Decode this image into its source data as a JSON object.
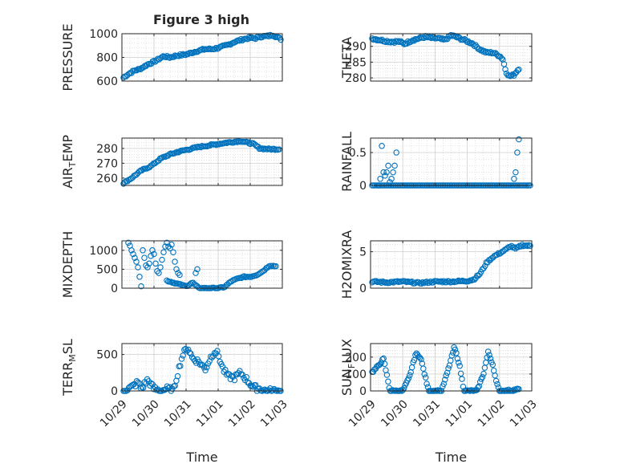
{
  "figure": {
    "title": "Figure 3 high",
    "xlabel": "Time"
  },
  "colors": {
    "marker": "#0072BD",
    "axis": "#262626",
    "grid": "#d0d0d0",
    "background": "#ffffff"
  },
  "chart_data": [
    {
      "id": "pressure",
      "type": "scatter",
      "title": "Figure 3 high",
      "ylabel": "PRESSURE",
      "xlabel": "",
      "ylim": [
        600,
        1000
      ],
      "yticks": [
        600,
        800,
        1000
      ],
      "xlim": [
        0,
        5
      ],
      "xticks": [
        0,
        1,
        2,
        3,
        4,
        5
      ],
      "xticklabels": [],
      "curve": [
        [
          0.05,
          630
        ],
        [
          0.2,
          660
        ],
        [
          0.4,
          690
        ],
        [
          0.55,
          700
        ],
        [
          0.8,
          740
        ],
        [
          1.05,
          770
        ],
        [
          1.3,
          810
        ],
        [
          1.5,
          800
        ],
        [
          1.7,
          815
        ],
        [
          2.0,
          825
        ],
        [
          2.3,
          850
        ],
        [
          2.6,
          870
        ],
        [
          2.8,
          870
        ],
        [
          3.0,
          880
        ],
        [
          3.3,
          905
        ],
        [
          3.5,
          930
        ],
        [
          3.8,
          955
        ],
        [
          4.0,
          965
        ],
        [
          4.15,
          960
        ],
        [
          4.3,
          975
        ],
        [
          4.55,
          980
        ],
        [
          4.7,
          990
        ],
        [
          4.95,
          955
        ]
      ],
      "n": 120,
      "jitter": 8
    },
    {
      "id": "theta",
      "type": "scatter",
      "title": "",
      "ylabel": "THETA",
      "xlabel": "",
      "ylim": [
        279,
        294
      ],
      "yticks": [
        280,
        285,
        290
      ],
      "xlim": [
        0,
        5
      ],
      "xticks": [
        0,
        1,
        2,
        3,
        4,
        5
      ],
      "xticklabels": [],
      "curve": [
        [
          0.05,
          292.5
        ],
        [
          0.3,
          292
        ],
        [
          0.6,
          291.5
        ],
        [
          0.9,
          291.5
        ],
        [
          1.05,
          290.8
        ],
        [
          1.3,
          292
        ],
        [
          1.5,
          292.5
        ],
        [
          1.7,
          293
        ],
        [
          1.9,
          292.6
        ],
        [
          2.1,
          292.5
        ],
        [
          2.3,
          292
        ],
        [
          2.5,
          293.5
        ],
        [
          2.7,
          292.8
        ],
        [
          2.9,
          292
        ],
        [
          3.15,
          291
        ],
        [
          3.4,
          289
        ],
        [
          3.6,
          288
        ],
        [
          3.8,
          288
        ],
        [
          4.0,
          287
        ],
        [
          4.1,
          286
        ],
        [
          4.2,
          282
        ],
        [
          4.3,
          280.5
        ],
        [
          4.45,
          281
        ],
        [
          4.6,
          283
        ]
      ],
      "n": 120,
      "jitter": 0.35
    },
    {
      "id": "air_temp",
      "type": "scatter",
      "title": "",
      "ylabel": "AIR_TEMP",
      "ylabel_parts": [
        "AIR",
        "T",
        "EMP"
      ],
      "xlabel": "",
      "ylim": [
        255,
        287
      ],
      "yticks": [
        260,
        270,
        280
      ],
      "xlim": [
        0,
        5
      ],
      "xticks": [
        0,
        1,
        2,
        3,
        4,
        5
      ],
      "xticklabels": [],
      "curve": [
        [
          0.05,
          256.5
        ],
        [
          0.3,
          260
        ],
        [
          0.6,
          265
        ],
        [
          0.9,
          268
        ],
        [
          1.2,
          273
        ],
        [
          1.5,
          276
        ],
        [
          1.8,
          278
        ],
        [
          2.1,
          279.5
        ],
        [
          2.4,
          281
        ],
        [
          2.7,
          282
        ],
        [
          3.0,
          283
        ],
        [
          3.3,
          284
        ],
        [
          3.5,
          284.5
        ],
        [
          3.7,
          285
        ],
        [
          3.9,
          284
        ],
        [
          4.1,
          283
        ],
        [
          4.3,
          280
        ],
        [
          4.6,
          279.5
        ],
        [
          4.9,
          279.5
        ]
      ],
      "n": 120,
      "jitter": 0.5
    },
    {
      "id": "rainfall",
      "type": "scatter",
      "title": "",
      "ylabel": "RAINFALL",
      "xlabel": "",
      "ylim": [
        0,
        0.72
      ],
      "yticks": [
        0,
        0.5
      ],
      "xlim": [
        0,
        5
      ],
      "xticks": [
        0,
        1,
        2,
        3,
        4,
        5
      ],
      "xticklabels": [],
      "curve": [
        [
          0.05,
          0
        ],
        [
          4.95,
          0
        ]
      ],
      "n": 110,
      "jitter": 0,
      "points": [
        [
          0.25,
          0.0
        ],
        [
          0.3,
          0.1
        ],
        [
          0.35,
          0.6
        ],
        [
          0.4,
          0.2
        ],
        [
          0.45,
          0.15
        ],
        [
          0.5,
          0.2
        ],
        [
          0.55,
          0.3
        ],
        [
          0.6,
          0.05
        ],
        [
          0.65,
          0.1
        ],
        [
          0.7,
          0.2
        ],
        [
          0.75,
          0.3
        ],
        [
          0.8,
          0.5
        ],
        [
          4.45,
          0.1
        ],
        [
          4.5,
          0.2
        ],
        [
          4.55,
          0.5
        ],
        [
          4.6,
          0.7
        ]
      ]
    },
    {
      "id": "mixdepth",
      "type": "scatter",
      "title": "",
      "ylabel": "MIXDEPTH",
      "xlabel": "",
      "ylim": [
        0,
        1250
      ],
      "yticks": [
        0,
        500,
        1000
      ],
      "xlim": [
        0,
        5
      ],
      "xticks": [
        0,
        1,
        2,
        3,
        4,
        5
      ],
      "xticklabels": [],
      "curve": [
        [
          1.4,
          200
        ],
        [
          1.6,
          150
        ],
        [
          1.8,
          100
        ],
        [
          2.0,
          50
        ],
        [
          2.2,
          150
        ],
        [
          2.4,
          0
        ],
        [
          2.6,
          0
        ],
        [
          2.8,
          0
        ],
        [
          3.0,
          0
        ],
        [
          3.2,
          30
        ],
        [
          3.4,
          180
        ],
        [
          3.6,
          250
        ],
        [
          3.8,
          300
        ],
        [
          4.0,
          300
        ],
        [
          4.2,
          350
        ],
        [
          4.4,
          450
        ],
        [
          4.6,
          600
        ],
        [
          4.8,
          580
        ]
      ],
      "n": 80,
      "jitter": 15,
      "points": [
        [
          0.2,
          1200
        ],
        [
          0.25,
          1120
        ],
        [
          0.3,
          1000
        ],
        [
          0.35,
          900
        ],
        [
          0.4,
          800
        ],
        [
          0.45,
          700
        ],
        [
          0.5,
          550
        ],
        [
          0.55,
          300
        ],
        [
          0.6,
          50
        ],
        [
          0.65,
          1000
        ],
        [
          0.7,
          800
        ],
        [
          0.75,
          600
        ],
        [
          0.8,
          550
        ],
        [
          0.85,
          650
        ],
        [
          0.9,
          850
        ],
        [
          0.95,
          1000
        ],
        [
          1.0,
          900
        ],
        [
          1.05,
          650
        ],
        [
          1.1,
          450
        ],
        [
          1.15,
          400
        ],
        [
          1.2,
          550
        ],
        [
          1.25,
          750
        ],
        [
          1.3,
          950
        ],
        [
          1.35,
          1100
        ],
        [
          1.4,
          1200
        ],
        [
          1.45,
          1100
        ],
        [
          1.5,
          1050
        ],
        [
          1.55,
          1150
        ],
        [
          1.6,
          950
        ],
        [
          1.65,
          700
        ],
        [
          1.7,
          500
        ],
        [
          1.75,
          400
        ],
        [
          1.8,
          350
        ],
        [
          2.35,
          500
        ],
        [
          2.3,
          400
        ]
      ]
    },
    {
      "id": "h2omixra",
      "type": "scatter",
      "title": "",
      "ylabel": "H2OMIXRA",
      "xlabel": "",
      "ylim": [
        0,
        6.5
      ],
      "yticks": [
        0,
        5
      ],
      "xlim": [
        0,
        5
      ],
      "xticks": [
        0,
        1,
        2,
        3,
        4,
        5
      ],
      "xticklabels": [],
      "curve": [
        [
          0.05,
          0.9
        ],
        [
          0.5,
          0.8
        ],
        [
          1.0,
          0.9
        ],
        [
          1.5,
          0.7
        ],
        [
          2.0,
          0.9
        ],
        [
          2.5,
          0.9
        ],
        [
          3.0,
          1.0
        ],
        [
          3.2,
          1.2
        ],
        [
          3.4,
          2.0
        ],
        [
          3.6,
          3.5
        ],
        [
          3.8,
          4.3
        ],
        [
          4.0,
          4.8
        ],
        [
          4.2,
          5.3
        ],
        [
          4.35,
          5.8
        ],
        [
          4.5,
          5.4
        ],
        [
          4.7,
          5.9
        ],
        [
          4.95,
          5.8
        ]
      ],
      "n": 120,
      "jitter": 0.12
    },
    {
      "id": "terr_msl",
      "type": "scatter",
      "title": "",
      "ylabel": "TERR_MSL",
      "ylabel_parts": [
        "TERR",
        "M",
        "SL"
      ],
      "xlabel": "Time",
      "ylim": [
        0,
        650
      ],
      "yticks": [
        0,
        500
      ],
      "xlim": [
        0,
        5
      ],
      "xticks": [
        0,
        1,
        2,
        3,
        4,
        5
      ],
      "xticklabels": [
        "10/29",
        "10/30",
        "10/31",
        "11/01",
        "11/02",
        "11/03"
      ],
      "curve": [
        [
          0.05,
          0
        ],
        [
          0.3,
          50
        ],
        [
          0.5,
          120
        ],
        [
          0.6,
          30
        ],
        [
          0.8,
          150
        ],
        [
          1.0,
          30
        ],
        [
          1.2,
          0
        ],
        [
          1.4,
          30
        ],
        [
          1.6,
          0
        ],
        [
          1.8,
          350
        ],
        [
          1.9,
          500
        ],
        [
          2.05,
          600
        ],
        [
          2.2,
          450
        ],
        [
          2.4,
          400
        ],
        [
          2.6,
          300
        ],
        [
          2.75,
          450
        ],
        [
          2.9,
          550
        ],
        [
          3.0,
          500
        ],
        [
          3.15,
          300
        ],
        [
          3.3,
          200
        ],
        [
          3.5,
          180
        ],
        [
          3.7,
          250
        ],
        [
          3.9,
          150
        ],
        [
          4.1,
          50
        ],
        [
          4.3,
          30
        ],
        [
          4.5,
          0
        ],
        [
          4.7,
          0
        ],
        [
          4.95,
          0
        ]
      ],
      "n": 120,
      "jitter": 40
    },
    {
      "id": "sun_flux",
      "type": "scatter",
      "title": "",
      "ylabel": "SUN_FLUX",
      "ylabel_parts": [
        "SUN",
        "F",
        "LUX"
      ],
      "xlabel": "Time",
      "ylim": [
        0,
        280
      ],
      "yticks": [
        0,
        100,
        200
      ],
      "xlim": [
        0,
        5
      ],
      "xticks": [
        0,
        1,
        2,
        3,
        4,
        5
      ],
      "xticklabels": [
        "10/29",
        "10/30",
        "10/31",
        "11/01",
        "11/02",
        "11/03"
      ],
      "curve": [
        [
          0.05,
          110
        ],
        [
          0.25,
          150
        ],
        [
          0.4,
          190
        ],
        [
          0.5,
          100
        ],
        [
          0.6,
          0
        ],
        [
          0.8,
          0
        ],
        [
          1.0,
          0
        ],
        [
          1.2,
          80
        ],
        [
          1.4,
          220
        ],
        [
          1.55,
          200
        ],
        [
          1.7,
          80
        ],
        [
          1.8,
          0
        ],
        [
          2.0,
          0
        ],
        [
          2.2,
          0
        ],
        [
          2.4,
          120
        ],
        [
          2.6,
          260
        ],
        [
          2.75,
          160
        ],
        [
          2.9,
          0
        ],
        [
          3.1,
          0
        ],
        [
          3.3,
          0
        ],
        [
          3.5,
          100
        ],
        [
          3.65,
          230
        ],
        [
          3.8,
          150
        ],
        [
          3.9,
          50
        ],
        [
          4.0,
          0
        ],
        [
          4.2,
          0
        ],
        [
          4.4,
          5
        ],
        [
          4.6,
          10
        ]
      ],
      "n": 130,
      "jitter": 6
    }
  ]
}
